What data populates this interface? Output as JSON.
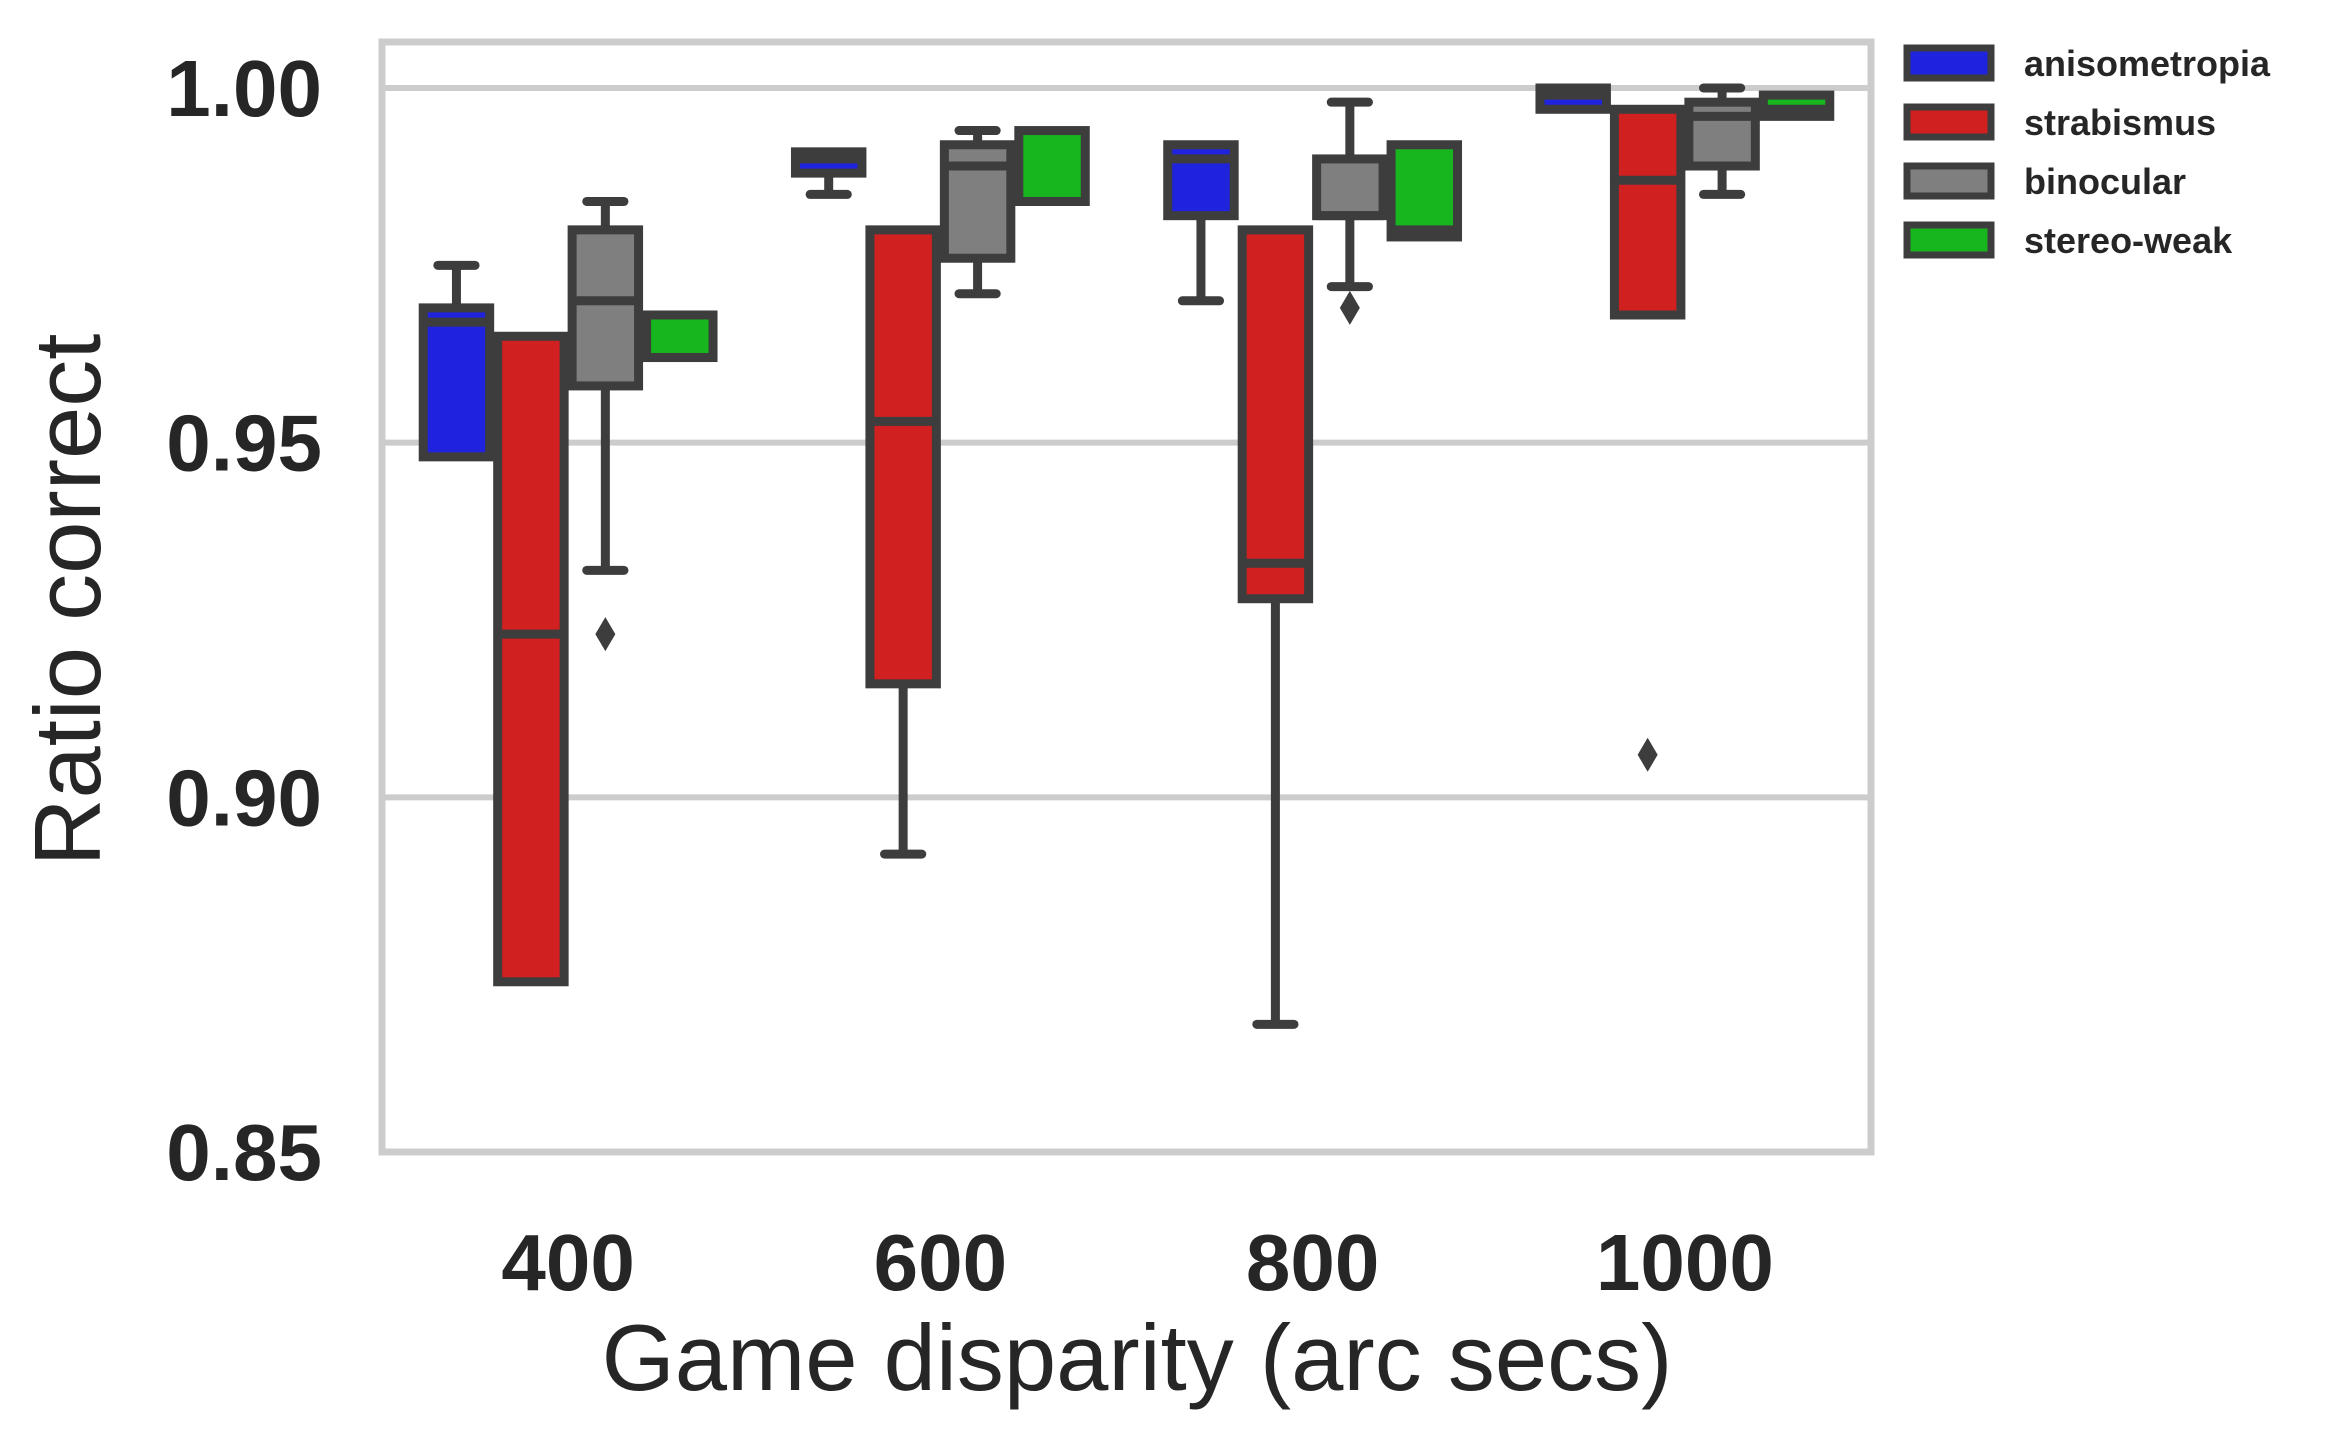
{
  "chart_data": {
    "type": "box",
    "title": "",
    "xlabel": "Game disparity (arc secs)",
    "ylabel": "Ratio correct",
    "categories": [
      "400",
      "600",
      "800",
      "1000"
    ],
    "ylim": [
      0.85,
      1.005
    ],
    "yticks": [
      0.85,
      0.9,
      0.95,
      1.0
    ],
    "ytick_labels": [
      "0.85",
      "0.90",
      "0.95",
      "1.00"
    ],
    "grid": "horizontal",
    "legend_position": "top-right outside",
    "series": [
      {
        "name": "anisometropia",
        "color": "#1f23dd",
        "boxes": [
          {
            "whislo": 0.948,
            "q1": 0.948,
            "med": 0.967,
            "q3": 0.969,
            "whishi": 0.975,
            "fliers": []
          },
          {
            "whislo": 0.985,
            "q1": 0.988,
            "med": 0.99,
            "q3": 0.991,
            "whishi": 0.991,
            "fliers": []
          },
          {
            "whislo": 0.97,
            "q1": 0.982,
            "med": 0.99,
            "q3": 0.992,
            "whishi": 0.992,
            "fliers": []
          },
          {
            "whislo": 0.997,
            "q1": 0.997,
            "med": 0.999,
            "q3": 1.0,
            "whishi": 1.0,
            "fliers": []
          }
        ]
      },
      {
        "name": "strabismus",
        "color": "#d02020",
        "boxes": [
          {
            "whislo": 0.874,
            "q1": 0.874,
            "med": 0.923,
            "q3": 0.965,
            "whishi": 0.965,
            "fliers": []
          },
          {
            "whislo": 0.892,
            "q1": 0.916,
            "med": 0.953,
            "q3": 0.98,
            "whishi": 0.98,
            "fliers": []
          },
          {
            "whislo": 0.868,
            "q1": 0.928,
            "med": 0.933,
            "q3": 0.98,
            "whishi": 0.98,
            "fliers": []
          },
          {
            "whislo": 0.968,
            "q1": 0.968,
            "med": 0.987,
            "q3": 0.997,
            "whishi": 0.997,
            "fliers": [
              0.906
            ]
          }
        ]
      },
      {
        "name": "binocular",
        "color": "#7f7f7f",
        "boxes": [
          {
            "whislo": 0.932,
            "q1": 0.958,
            "med": 0.97,
            "q3": 0.98,
            "whishi": 0.984,
            "fliers": [
              0.923
            ]
          },
          {
            "whislo": 0.971,
            "q1": 0.976,
            "med": 0.989,
            "q3": 0.992,
            "whishi": 0.994,
            "fliers": []
          },
          {
            "whislo": 0.972,
            "q1": 0.982,
            "med": 0.982,
            "q3": 0.99,
            "whishi": 0.998,
            "fliers": [
              0.969
            ]
          },
          {
            "whislo": 0.985,
            "q1": 0.989,
            "med": 0.996,
            "q3": 0.998,
            "whishi": 1.0,
            "fliers": []
          }
        ]
      },
      {
        "name": "stereo-weak",
        "color": "#17b51e",
        "boxes": [
          {
            "whislo": 0.962,
            "q1": 0.962,
            "med": 0.962,
            "q3": 0.968,
            "whishi": 0.968,
            "fliers": []
          },
          {
            "whislo": 0.984,
            "q1": 0.984,
            "med": 0.984,
            "q3": 0.994,
            "whishi": 0.994,
            "fliers": []
          },
          {
            "whislo": 0.979,
            "q1": 0.979,
            "med": 0.98,
            "q3": 0.992,
            "whishi": 0.992,
            "fliers": []
          },
          {
            "whislo": 0.996,
            "q1": 0.996,
            "med": 0.997,
            "q3": 0.999,
            "whishi": 0.999,
            "fliers": []
          }
        ]
      }
    ]
  }
}
